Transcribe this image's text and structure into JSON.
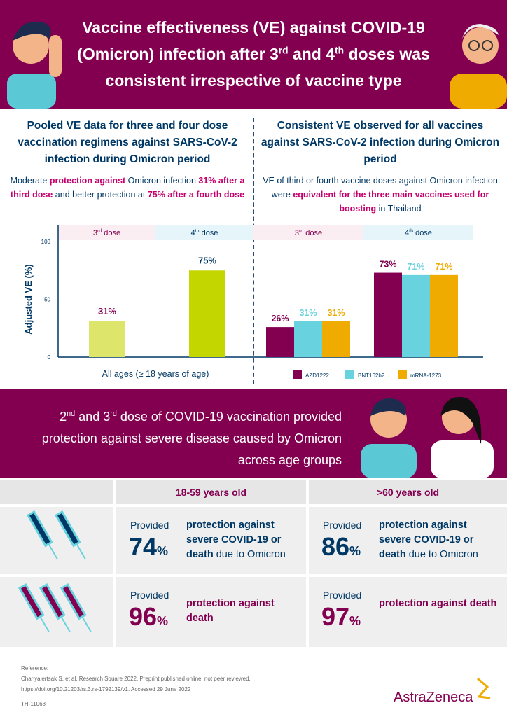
{
  "header": {
    "title_parts": [
      "Vaccine effectiveness (VE) against COVID-19 (Omicron) infection after 3",
      "rd",
      " and 4",
      "th",
      " doses was consistent irrespective of vaccine type"
    ]
  },
  "left": {
    "title": "Pooled VE data for three and four dose vaccination regimens against SARS-CoV-2 infection during Omicron period",
    "sub": [
      "Moderate ",
      "protection against",
      " Omicron infection ",
      "31% after a third dose",
      " and better protection at ",
      "75% after a fourth dose"
    ]
  },
  "right": {
    "title": "Consistent VE observed for all vaccines against SARS-CoV-2 infection during Omicron period",
    "sub": [
      "VE of third or fourth vaccine doses against Omicron infection were ",
      "equivalent for the three main vaccines used for boosting",
      " in Thailand"
    ]
  },
  "colors": {
    "purple": "#830051",
    "navy": "#003865",
    "lime_light": "#dde66a",
    "lime": "#c4d600",
    "cyan": "#68d2df",
    "gold": "#f0ab00",
    "pink_band": "#fbeef3",
    "blue_band": "#e6f5f9"
  },
  "chart_data": [
    {
      "type": "bar",
      "ylabel": "Adjusted VE (%)",
      "ylim": [
        0,
        100
      ],
      "yticks": [
        "0",
        "50",
        "100"
      ],
      "categories": [
        {
          "base": "3",
          "sup": "rd",
          "rest": " dose"
        },
        {
          "base": "4",
          "sup": "th",
          "rest": " dose"
        }
      ],
      "xlabel": "All ages (≥ 18 years of age)",
      "values": [
        31,
        75
      ],
      "labels": [
        "31%",
        "75%"
      ]
    },
    {
      "type": "bar",
      "ylim": [
        0,
        100
      ],
      "categories": [
        {
          "base": "3",
          "sup": "rd",
          "rest": " dose"
        },
        {
          "base": "4",
          "sup": "th",
          "rest": " dose"
        }
      ],
      "series": [
        {
          "name": "AZD1222",
          "color": "#830051",
          "values": [
            26,
            73
          ],
          "labels": [
            "26%",
            "73%"
          ]
        },
        {
          "name": "BNT162b2",
          "color": "#68d2df",
          "values": [
            31,
            71
          ],
          "labels": [
            "31%",
            "71%"
          ]
        },
        {
          "name": "mRNA-1273",
          "color": "#f0ab00",
          "values": [
            31,
            71
          ],
          "labels": [
            "31%",
            "71%"
          ]
        }
      ],
      "legend": "bottom"
    }
  ],
  "band": {
    "parts": [
      "2",
      "nd",
      " and 3",
      "rd",
      " dose of COVID-19 vaccination provided protection against severe disease caused by Omicron across age groups"
    ]
  },
  "table": {
    "headers": [
      "18-59 years old",
      ">60 years old"
    ],
    "rows": [
      {
        "icon": "two-syringes",
        "cells": [
          {
            "provided": "Provided",
            "value": "74",
            "pct": "%",
            "bold": "protection against severe COVID-19 or death",
            "normal": " due to Omicron"
          },
          {
            "provided": "Provided",
            "value": "86",
            "pct": "%",
            "bold": "protection against severe COVID-19 or death",
            "normal": " due to Omicron"
          }
        ]
      },
      {
        "icon": "three-syringes",
        "cells": [
          {
            "provided": "Provided",
            "value": "96",
            "pct": "%",
            "bold": "protection against death",
            "normal": ""
          },
          {
            "provided": "Provided",
            "value": "97",
            "pct": "%",
            "bold": "protection against death",
            "normal": ""
          }
        ]
      }
    ]
  },
  "footer": {
    "ref_label": "Reference:",
    "ref1": "Chariyalertsak S, et al. Research Square 2022. Preprint published online, not peer reviewed.",
    "ref2": "https://doi.org/10.21203/rs.3.rs-1792139/v1. Accessed 29 June 2022",
    "code": "TH-11068",
    "logo": "AstraZeneca"
  }
}
